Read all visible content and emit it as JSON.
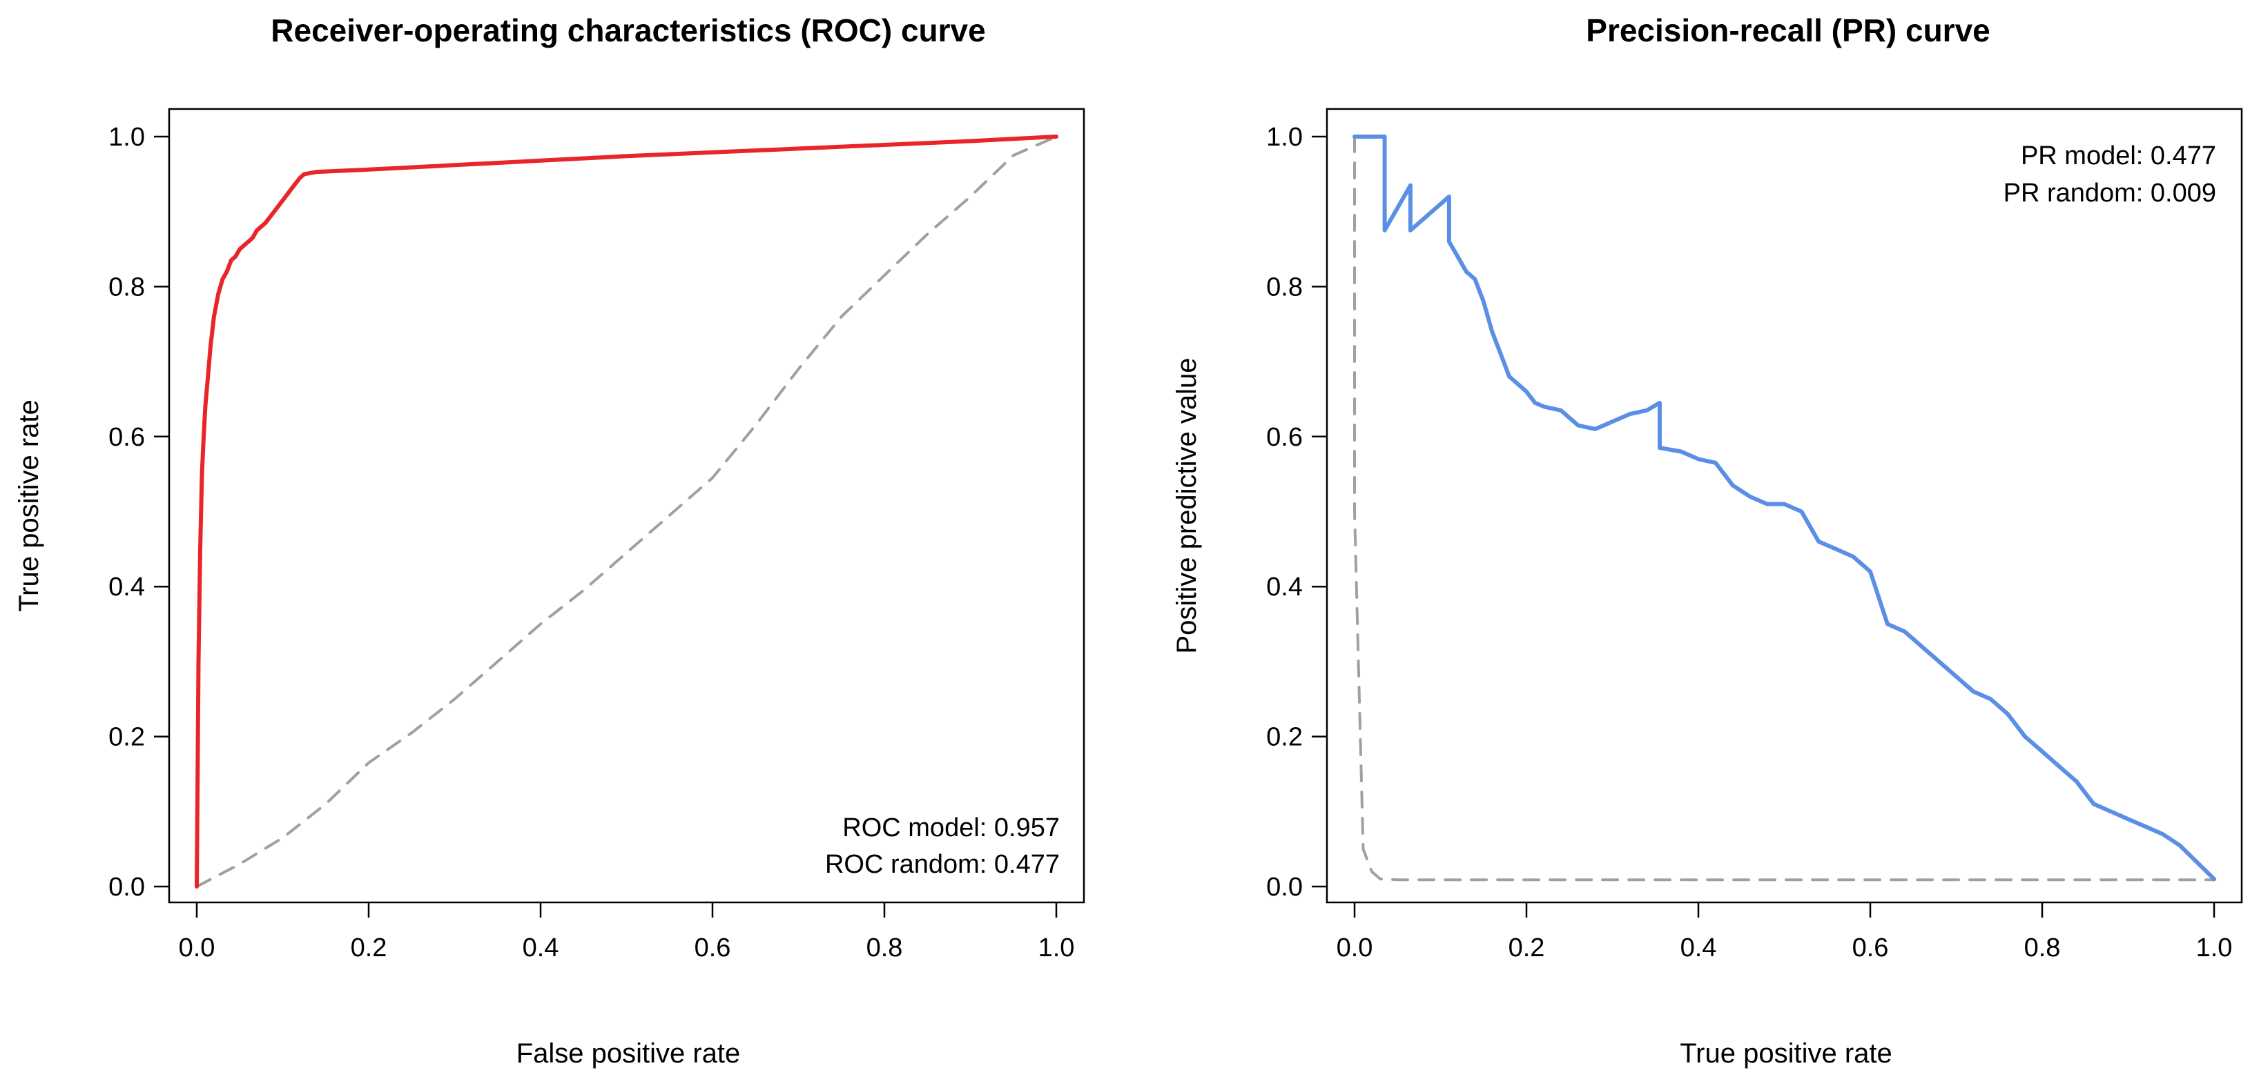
{
  "chart_data": [
    {
      "id": "roc",
      "type": "line",
      "title": "Receiver-operating characteristics (ROC) curve",
      "xlabel": "False positive rate",
      "ylabel": "True positive rate",
      "xlim": [
        0,
        1
      ],
      "ylim": [
        0,
        1
      ],
      "xticks": [
        "0.0",
        "0.2",
        "0.4",
        "0.6",
        "0.8",
        "1.0"
      ],
      "yticks": [
        "0.0",
        "0.2",
        "0.4",
        "0.6",
        "0.8",
        "1.0"
      ],
      "legend_position": "bottom-right",
      "legend": [
        "ROC model: 0.957",
        "ROC random: 0.477"
      ],
      "series": [
        {
          "name": "ROC model",
          "color": "#e8262a",
          "style": "solid",
          "x": [
            0,
            0.002,
            0.004,
            0.006,
            0.008,
            0.01,
            0.013,
            0.016,
            0.02,
            0.025,
            0.03,
            0.035,
            0.04,
            0.045,
            0.05,
            0.055,
            0.06,
            0.065,
            0.07,
            0.08,
            0.09,
            0.1,
            0.11,
            0.12,
            0.125,
            0.14,
            0.2,
            0.3,
            0.4,
            0.5,
            0.6,
            0.7,
            0.8,
            0.9,
            1.0
          ],
          "y": [
            0,
            0.3,
            0.45,
            0.55,
            0.6,
            0.64,
            0.68,
            0.72,
            0.76,
            0.79,
            0.81,
            0.82,
            0.835,
            0.84,
            0.85,
            0.855,
            0.86,
            0.865,
            0.875,
            0.885,
            0.9,
            0.915,
            0.93,
            0.945,
            0.95,
            0.953,
            0.956,
            0.962,
            0.968,
            0.974,
            0.979,
            0.984,
            0.989,
            0.994,
            1.0
          ]
        },
        {
          "name": "ROC random",
          "color": "#a0a0a0",
          "style": "dashed",
          "x": [
            0,
            0.05,
            0.1,
            0.15,
            0.2,
            0.25,
            0.3,
            0.35,
            0.4,
            0.45,
            0.5,
            0.55,
            0.6,
            0.65,
            0.7,
            0.75,
            0.8,
            0.85,
            0.9,
            0.95,
            1.0
          ],
          "y": [
            0,
            0.03,
            0.065,
            0.11,
            0.165,
            0.205,
            0.25,
            0.3,
            0.35,
            0.395,
            0.445,
            0.495,
            0.545,
            0.615,
            0.69,
            0.76,
            0.815,
            0.87,
            0.92,
            0.975,
            1.0
          ]
        }
      ]
    },
    {
      "id": "pr",
      "type": "line",
      "title": "Precision-recall (PR) curve",
      "xlabel": "True positive rate",
      "ylabel": "Positive predictive value",
      "xlim": [
        0,
        1
      ],
      "ylim": [
        0,
        1
      ],
      "xticks": [
        "0.0",
        "0.2",
        "0.4",
        "0.6",
        "0.8",
        "1.0"
      ],
      "yticks": [
        "0.0",
        "0.2",
        "0.4",
        "0.6",
        "0.8",
        "1.0"
      ],
      "legend_position": "top-right",
      "legend": [
        "PR model: 0.477",
        "PR random: 0.009"
      ],
      "series": [
        {
          "name": "PR model",
          "color": "#5b8fe6",
          "style": "solid",
          "x": [
            0,
            0.035,
            0.035,
            0.065,
            0.065,
            0.11,
            0.11,
            0.12,
            0.13,
            0.14,
            0.15,
            0.16,
            0.17,
            0.18,
            0.19,
            0.2,
            0.21,
            0.22,
            0.24,
            0.26,
            0.28,
            0.3,
            0.32,
            0.34,
            0.355,
            0.355,
            0.38,
            0.4,
            0.42,
            0.44,
            0.46,
            0.48,
            0.5,
            0.52,
            0.54,
            0.56,
            0.58,
            0.6,
            0.62,
            0.64,
            0.66,
            0.68,
            0.7,
            0.72,
            0.74,
            0.76,
            0.78,
            0.8,
            0.82,
            0.84,
            0.86,
            0.88,
            0.9,
            0.92,
            0.94,
            0.96,
            1.0
          ],
          "y": [
            1.0,
            1.0,
            0.875,
            0.935,
            0.875,
            0.92,
            0.86,
            0.84,
            0.82,
            0.81,
            0.78,
            0.74,
            0.71,
            0.68,
            0.67,
            0.66,
            0.645,
            0.64,
            0.635,
            0.615,
            0.61,
            0.62,
            0.63,
            0.635,
            0.645,
            0.585,
            0.58,
            0.57,
            0.565,
            0.535,
            0.52,
            0.51,
            0.51,
            0.5,
            0.46,
            0.45,
            0.44,
            0.42,
            0.35,
            0.34,
            0.32,
            0.3,
            0.28,
            0.26,
            0.25,
            0.23,
            0.2,
            0.18,
            0.16,
            0.14,
            0.11,
            0.1,
            0.09,
            0.08,
            0.07,
            0.055,
            0.01
          ]
        },
        {
          "name": "PR random",
          "color": "#a0a0a0",
          "style": "dashed",
          "x": [
            0,
            0,
            0.01,
            0.02,
            0.03,
            0.05,
            0.2,
            0.4,
            0.6,
            0.8,
            1.0
          ],
          "y": [
            1.0,
            0.5,
            0.05,
            0.02,
            0.01,
            0.009,
            0.009,
            0.009,
            0.009,
            0.009,
            0.009
          ]
        }
      ]
    }
  ]
}
